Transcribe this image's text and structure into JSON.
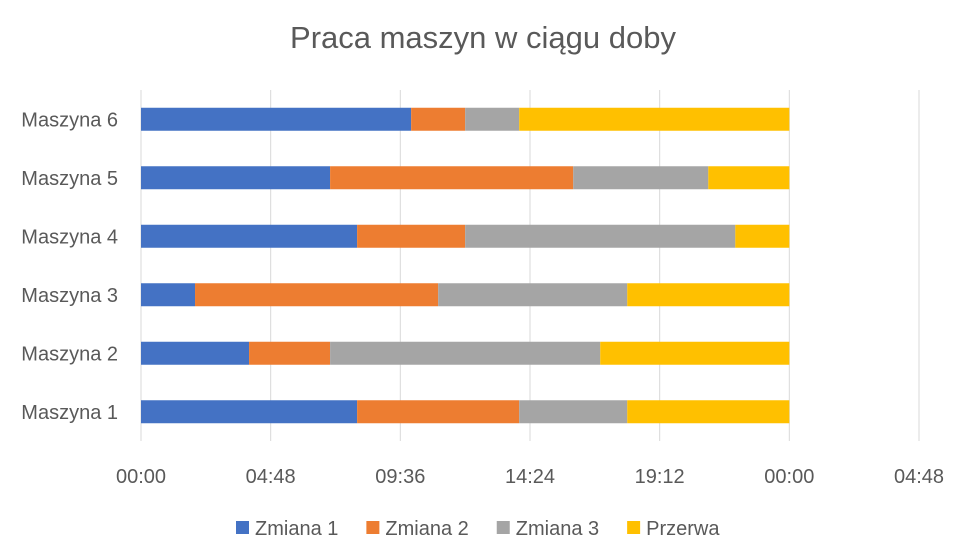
{
  "chart_data": {
    "type": "bar",
    "orientation": "horizontal",
    "stacked": true,
    "title": "Praca maszyn w ciągu doby",
    "xlabel": "",
    "ylabel": "",
    "categories": [
      "Maszyna 1",
      "Maszyna 2",
      "Maszyna 3",
      "Maszyna 4",
      "Maszyna 5",
      "Maszyna 6"
    ],
    "x_unit": "hours",
    "xlim": [
      0,
      28.8
    ],
    "x_ticks": [
      0,
      4.8,
      9.6,
      14.4,
      19.2,
      24,
      28.8
    ],
    "x_tick_labels": [
      "00:00",
      "04:48",
      "09:36",
      "14:24",
      "19:12",
      "00:00",
      "04:48"
    ],
    "grid": true,
    "legend": "bottom",
    "series": [
      {
        "name": "Zmiana 1",
        "color": "#4472C4",
        "values": [
          8,
          4,
          2,
          8,
          7,
          10
        ]
      },
      {
        "name": "Zmiana 2",
        "color": "#ED7D31",
        "values": [
          6,
          3,
          9,
          4,
          9,
          2
        ]
      },
      {
        "name": "Zmiana 3",
        "color": "#A5A5A5",
        "values": [
          4,
          10,
          7,
          10,
          5,
          2
        ]
      },
      {
        "name": "Przerwa",
        "color": "#FFC000",
        "values": [
          6,
          7,
          6,
          2,
          3,
          10
        ]
      }
    ]
  }
}
